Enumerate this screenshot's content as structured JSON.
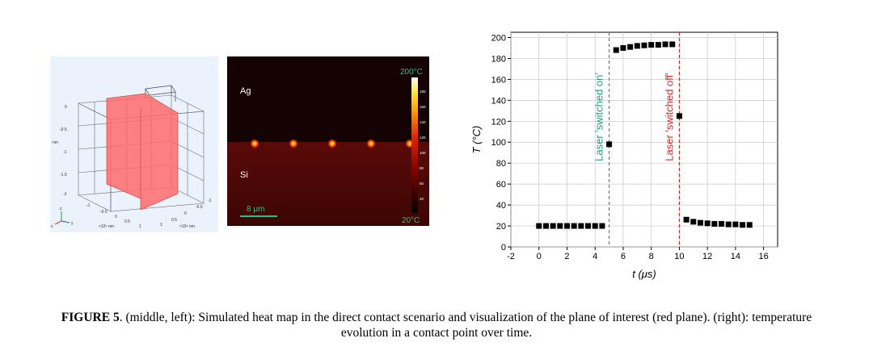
{
  "figure": {
    "caption_label": "FIGURE 5",
    "caption_text": ". (middle, left): Simulated heat map in the direct contact scenario and visualization of the plane of interest (red plane). (right): temperature evolution in a contact point over time."
  },
  "left_panel": {
    "axis_unit": "nm",
    "x_unit": "×10⁵ nm",
    "y_unit": "×10⁵ nm",
    "z_ticks": [
      "0",
      "-0.5",
      "-1",
      "-1.5",
      "-2"
    ],
    "x_ticks": [
      "-1",
      "-0.5",
      "0",
      "0.5",
      "1"
    ],
    "y_ticks": [
      "-1",
      "-0.5",
      "0",
      "0.5",
      "1"
    ],
    "triad_labels": [
      "z",
      "x",
      "y"
    ],
    "plane_color": "#ff6b6b"
  },
  "heat_map": {
    "label_top": "Ag",
    "label_bottom": "Si",
    "scale_bar": "8 μm",
    "colorbar_max": "200°C",
    "colorbar_min": "20°C",
    "colorbar_ticks": [
      "180",
      "160",
      "140",
      "120",
      "100",
      "80",
      "60",
      "40"
    ],
    "hotspot_count": 5
  },
  "chart_data": {
    "type": "scatter",
    "xlabel": "t (μs)",
    "ylabel": "T (°C)",
    "xlim": [
      -2,
      17
    ],
    "ylim": [
      0,
      205
    ],
    "xticks": [
      -2,
      0,
      2,
      4,
      6,
      8,
      10,
      12,
      14,
      16
    ],
    "yticks": [
      0,
      20,
      40,
      60,
      80,
      100,
      120,
      140,
      160,
      180,
      200
    ],
    "series": [
      {
        "x": [
          0,
          0.5,
          1,
          1.5,
          2,
          2.5,
          3,
          3.5,
          4,
          4.5,
          5,
          5.5,
          6,
          6.5,
          7,
          7.5,
          8,
          8.5,
          9,
          9.5,
          10,
          10.5,
          11,
          11.5,
          12,
          12.5,
          13,
          13.5,
          14,
          14.5,
          15
        ],
        "y": [
          20,
          20,
          20,
          20,
          20,
          20,
          20,
          20,
          20,
          20,
          98,
          188,
          190,
          191,
          192,
          192.5,
          193,
          193,
          193.5,
          193.5,
          125,
          26,
          24,
          23,
          22.5,
          22,
          22,
          21.5,
          21.5,
          21,
          21
        ]
      }
    ],
    "vlines": [
      {
        "x": 5,
        "label": "Laser 'switched on'",
        "color": "#1f9e89"
      },
      {
        "x": 10,
        "label": "Laser 'switched off'",
        "color": "#d62728"
      }
    ]
  }
}
